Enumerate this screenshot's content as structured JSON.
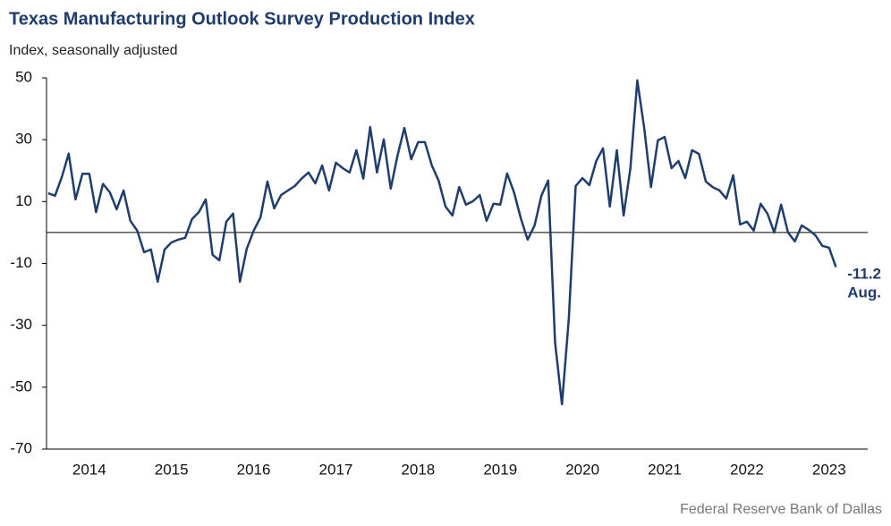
{
  "chart_data": {
    "type": "line",
    "title": "Texas Manufacturing Outlook Survey Production Index",
    "subtitle": "Index, seasonally adjusted",
    "source": "Federal Reserve Bank of Dallas",
    "annotations": [
      "Aug."
    ],
    "x": [
      2014.0,
      2014.083,
      2014.167,
      2014.25,
      2014.333,
      2014.417,
      2014.5,
      2014.583,
      2014.667,
      2014.75,
      2014.833,
      2014.917,
      2015.0,
      2015.083,
      2015.167,
      2015.25,
      2015.333,
      2015.417,
      2015.5,
      2015.583,
      2015.667,
      2015.75,
      2015.833,
      2015.917,
      2016.0,
      2016.083,
      2016.167,
      2016.25,
      2016.333,
      2016.417,
      2016.5,
      2016.583,
      2016.667,
      2016.75,
      2016.833,
      2016.917,
      2017.0,
      2017.083,
      2017.167,
      2017.25,
      2017.333,
      2017.417,
      2017.5,
      2017.583,
      2017.667,
      2017.75,
      2017.833,
      2017.917,
      2018.0,
      2018.083,
      2018.167,
      2018.25,
      2018.333,
      2018.417,
      2018.5,
      2018.583,
      2018.667,
      2018.75,
      2018.833,
      2018.917,
      2019.0,
      2019.083,
      2019.167,
      2019.25,
      2019.333,
      2019.417,
      2019.5,
      2019.583,
      2019.667,
      2019.75,
      2019.833,
      2019.917,
      2020.0,
      2020.083,
      2020.167,
      2020.25,
      2020.333,
      2020.417,
      2020.5,
      2020.583,
      2020.667,
      2020.75,
      2020.833,
      2020.917,
      2021.0,
      2021.083,
      2021.167,
      2021.25,
      2021.333,
      2021.417,
      2021.5,
      2021.583,
      2021.667,
      2021.75,
      2021.833,
      2021.917,
      2022.0,
      2022.083,
      2022.167,
      2022.25,
      2022.333,
      2022.417,
      2022.5,
      2022.583,
      2022.667,
      2022.75,
      2022.833,
      2022.917,
      2023.0,
      2023.083,
      2023.167,
      2023.25,
      2023.333,
      2023.417,
      2023.5,
      2023.583
    ],
    "series": [
      {
        "name": "Production Index",
        "color": "#1f3d6d",
        "values": [
          12.7,
          11.9,
          18,
          25.5,
          10.7,
          19,
          19,
          6.6,
          15.7,
          13,
          7.5,
          13.6,
          3.8,
          0.6,
          -6.4,
          -5.5,
          -15.9,
          -5.5,
          -3.2,
          -2.3,
          -1.7,
          4.3,
          6.6,
          10.7,
          -7.2,
          -9,
          3.5,
          6.1,
          -15.9,
          -5.2,
          0.6,
          4.9,
          16.5,
          7.8,
          12.1,
          13.6,
          15,
          17.4,
          19.4,
          15.9,
          21.7,
          13.6,
          22.6,
          20.8,
          19.4,
          26.6,
          17.4,
          34.1,
          19.4,
          30.1,
          14.2,
          24.9,
          33.8,
          23.7,
          29.2,
          29.2,
          21.7,
          16.8,
          8.4,
          5.5,
          14.7,
          9,
          10.1,
          12.1,
          3.8,
          9.3,
          9,
          19.1,
          13,
          4.6,
          -2.3,
          2.3,
          11.9,
          16.8,
          -35.6,
          -55.5,
          -28,
          15,
          17.6,
          15.3,
          23.1,
          27.2,
          8.4,
          26.6,
          5.5,
          20.8,
          49.2,
          33.8,
          14.7,
          29.8,
          30.9,
          20.8,
          23.1,
          17.6,
          26.6,
          25.4,
          16.5,
          14.7,
          13.6,
          11,
          18.5,
          2.6,
          3.5,
          0.6,
          9.3,
          6.1,
          0,
          9,
          0,
          -2.9,
          2.3,
          0.9,
          -0.9,
          -4.3,
          -4.9,
          -11.2
        ]
      }
    ],
    "xlim": [
      2013.98,
      2023.97
    ],
    "xticks": [
      {
        "value": 2014.5,
        "label": "2014"
      },
      {
        "value": 2015.5,
        "label": "2015"
      },
      {
        "value": 2016.5,
        "label": "2016"
      },
      {
        "value": 2017.5,
        "label": "2017"
      },
      {
        "value": 2018.5,
        "label": "2018"
      },
      {
        "value": 2019.5,
        "label": "2019"
      },
      {
        "value": 2020.5,
        "label": "2020"
      },
      {
        "value": 2021.5,
        "label": "2021"
      },
      {
        "value": 2022.5,
        "label": "2022"
      },
      {
        "value": 2023.5,
        "label": "2023"
      }
    ],
    "ylim": [
      -70,
      50
    ],
    "yticks": [
      -70,
      -50,
      -30,
      -10,
      10,
      30,
      50
    ],
    "grid": false
  }
}
